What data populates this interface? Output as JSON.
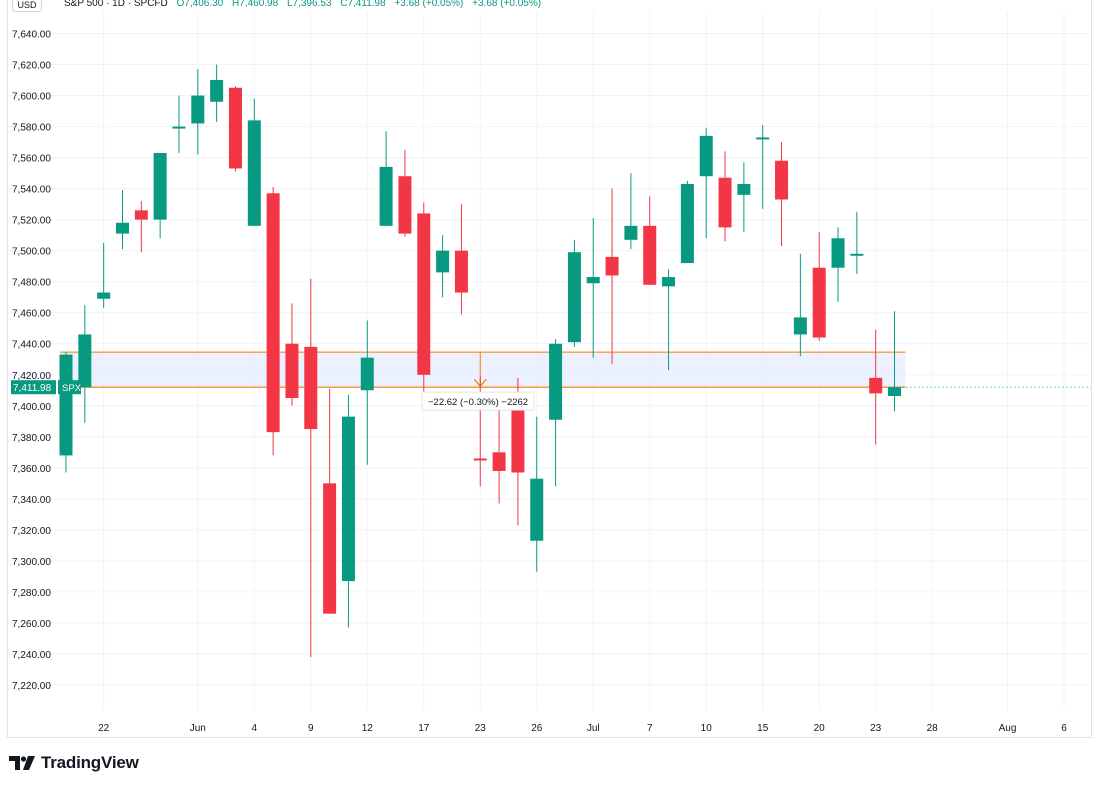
{
  "header": {
    "currency_button": "USD",
    "symbol_info": "S&P 500 · 1D · SPCFD",
    "open": "O7,406.30",
    "high": "H7,460.98",
    "low": "L7,396.53",
    "close": "C7,411.98",
    "change": "+3.68 (+0.05%)",
    "change2": "+3.68 (+0.05%)"
  },
  "price_tag": {
    "value": "7,411.98",
    "symbol": "SPX"
  },
  "measure_label": "−22.62 (−0.30%) −2262",
  "brand": {
    "name": "TradingView",
    "icon": "tradingview-logo-icon"
  },
  "colors": {
    "up": "#089981",
    "down": "#f23645",
    "measure": "#f57c00",
    "measure_fill": "#e3ebfd",
    "grid": "#f0f3fa",
    "axis_text": "#131722"
  },
  "chart_data": {
    "type": "candlestick",
    "title": "S&P 500 · 1D · SPCFD",
    "xlabel": "",
    "ylabel": "",
    "ylim": [
      7205,
      7655
    ],
    "y_ticks": [
      7220,
      7240,
      7260,
      7280,
      7300,
      7320,
      7340,
      7360,
      7380,
      7400,
      7420,
      7440,
      7460,
      7480,
      7500,
      7520,
      7540,
      7560,
      7580,
      7600,
      7620,
      7640
    ],
    "y_tick_labels": [
      "7,220.00",
      "7,240.00",
      "7,260.00",
      "7,280.00",
      "7,300.00",
      "7,320.00",
      "7,340.00",
      "7,360.00",
      "7,380.00",
      "7,400.00",
      "7,420.00",
      "7,440.00",
      "7,460.00",
      "7,480.00",
      "7,500.00",
      "7,520.00",
      "7,540.00",
      "7,560.00",
      "7,580.00",
      "7,600.00",
      "7,620.00",
      "7,640.00"
    ],
    "x_ticks": [
      {
        "label": "22",
        "slot": 2
      },
      {
        "label": "Jun",
        "slot": 7
      },
      {
        "label": "4",
        "slot": 10
      },
      {
        "label": "9",
        "slot": 13
      },
      {
        "label": "12",
        "slot": 16
      },
      {
        "label": "17",
        "slot": 19
      },
      {
        "label": "23",
        "slot": 22
      },
      {
        "label": "26",
        "slot": 25
      },
      {
        "label": "Jul",
        "slot": 28
      },
      {
        "label": "7",
        "slot": 31
      },
      {
        "label": "10",
        "slot": 34
      },
      {
        "label": "15",
        "slot": 37
      },
      {
        "label": "20",
        "slot": 40
      },
      {
        "label": "23",
        "slot": 43
      },
      {
        "label": "28",
        "slot": 46
      },
      {
        "label": "Aug",
        "slot": 50
      },
      {
        "label": "6",
        "slot": 53
      }
    ],
    "candles": [
      {
        "slot": 0,
        "o": 7368,
        "h": 7435,
        "l": 7357,
        "c": 7433
      },
      {
        "slot": 1,
        "o": 7412,
        "h": 7465,
        "l": 7389,
        "c": 7446
      },
      {
        "slot": 2,
        "o": 7469,
        "h": 7505,
        "l": 7463,
        "c": 7473
      },
      {
        "slot": 3,
        "o": 7511,
        "h": 7539,
        "l": 7501,
        "c": 7518
      },
      {
        "slot": 4,
        "o": 7526,
        "h": 7532,
        "l": 7499,
        "c": 7520
      },
      {
        "slot": 5,
        "o": 7520,
        "h": 7563,
        "l": 7508,
        "c": 7563
      },
      {
        "slot": 6,
        "o": 7579,
        "h": 7600,
        "l": 7563,
        "c": 7580
      },
      {
        "slot": 7,
        "o": 7582,
        "h": 7617,
        "l": 7562,
        "c": 7600
      },
      {
        "slot": 8,
        "o": 7596,
        "h": 7620,
        "l": 7583,
        "c": 7610
      },
      {
        "slot": 9,
        "o": 7605,
        "h": 7606,
        "l": 7551,
        "c": 7553
      },
      {
        "slot": 10,
        "o": 7516,
        "h": 7598,
        "l": 7516,
        "c": 7584
      },
      {
        "slot": 11,
        "o": 7537,
        "h": 7541,
        "l": 7368,
        "c": 7383
      },
      {
        "slot": 12,
        "o": 7440,
        "h": 7466,
        "l": 7400,
        "c": 7405
      },
      {
        "slot": 13,
        "o": 7438,
        "h": 7482,
        "l": 7238,
        "c": 7385
      },
      {
        "slot": 14,
        "o": 7350,
        "h": 7411,
        "l": 7266,
        "c": 7266
      },
      {
        "slot": 15,
        "o": 7287,
        "h": 7407,
        "l": 7257,
        "c": 7393
      },
      {
        "slot": 16,
        "o": 7410,
        "h": 7455,
        "l": 7362,
        "c": 7431
      },
      {
        "slot": 17,
        "o": 7516,
        "h": 7577,
        "l": 7516,
        "c": 7554
      },
      {
        "slot": 18,
        "o": 7548,
        "h": 7565,
        "l": 7509,
        "c": 7511
      },
      {
        "slot": 19,
        "o": 7524,
        "h": 7531,
        "l": 7402,
        "c": 7420
      },
      {
        "slot": 20,
        "o": 7486,
        "h": 7510,
        "l": 7470,
        "c": 7500
      },
      {
        "slot": 21,
        "o": 7500,
        "h": 7530,
        "l": 7459,
        "c": 7473
      },
      {
        "slot": 22,
        "o": 7366,
        "h": 7419,
        "l": 7348,
        "c": 7365
      },
      {
        "slot": 23,
        "o": 7370,
        "h": 7405,
        "l": 7337,
        "c": 7358
      },
      {
        "slot": 24,
        "o": 7405,
        "h": 7418,
        "l": 7323,
        "c": 7357
      },
      {
        "slot": 25,
        "o": 7313,
        "h": 7393,
        "l": 7293,
        "c": 7353
      },
      {
        "slot": 26,
        "o": 7391,
        "h": 7443,
        "l": 7348,
        "c": 7440
      },
      {
        "slot": 27,
        "o": 7441,
        "h": 7507,
        "l": 7438,
        "c": 7499
      },
      {
        "slot": 28,
        "o": 7479,
        "h": 7521,
        "l": 7431,
        "c": 7483
      },
      {
        "slot": 29,
        "o": 7496,
        "h": 7540,
        "l": 7427,
        "c": 7484
      },
      {
        "slot": 30,
        "o": 7507,
        "h": 7550,
        "l": 7501,
        "c": 7516
      },
      {
        "slot": 31,
        "o": 7516,
        "h": 7535,
        "l": 7478,
        "c": 7478
      },
      {
        "slot": 32,
        "o": 7477,
        "h": 7488,
        "l": 7423,
        "c": 7483
      },
      {
        "slot": 33,
        "o": 7492,
        "h": 7545,
        "l": 7492,
        "c": 7543
      },
      {
        "slot": 34,
        "o": 7548,
        "h": 7579,
        "l": 7508,
        "c": 7574
      },
      {
        "slot": 35,
        "o": 7547,
        "h": 7564,
        "l": 7506,
        "c": 7515
      },
      {
        "slot": 36,
        "o": 7536,
        "h": 7557,
        "l": 7512,
        "c": 7543
      },
      {
        "slot": 37,
        "o": 7572,
        "h": 7581,
        "l": 7527,
        "c": 7573
      },
      {
        "slot": 38,
        "o": 7558,
        "h": 7570,
        "l": 7503,
        "c": 7533
      },
      {
        "slot": 39,
        "o": 7446,
        "h": 7498,
        "l": 7432,
        "c": 7457
      },
      {
        "slot": 40,
        "o": 7489,
        "h": 7512,
        "l": 7442,
        "c": 7444
      },
      {
        "slot": 41,
        "o": 7489,
        "h": 7515,
        "l": 7467,
        "c": 7508
      },
      {
        "slot": 42,
        "o": 7497,
        "h": 7525,
        "l": 7485,
        "c": 7498
      },
      {
        "slot": 43,
        "o": 7418,
        "h": 7449,
        "l": 7375,
        "c": 7408
      },
      {
        "slot": 44,
        "o": 7406.3,
        "h": 7460.98,
        "l": 7396.53,
        "c": 7411.98
      }
    ],
    "last_price": 7411.98,
    "measure": {
      "from_slot": 0,
      "to_slot": 45,
      "top": 7434.6,
      "bottom": 7411.98,
      "arrow_slot": 22
    }
  }
}
